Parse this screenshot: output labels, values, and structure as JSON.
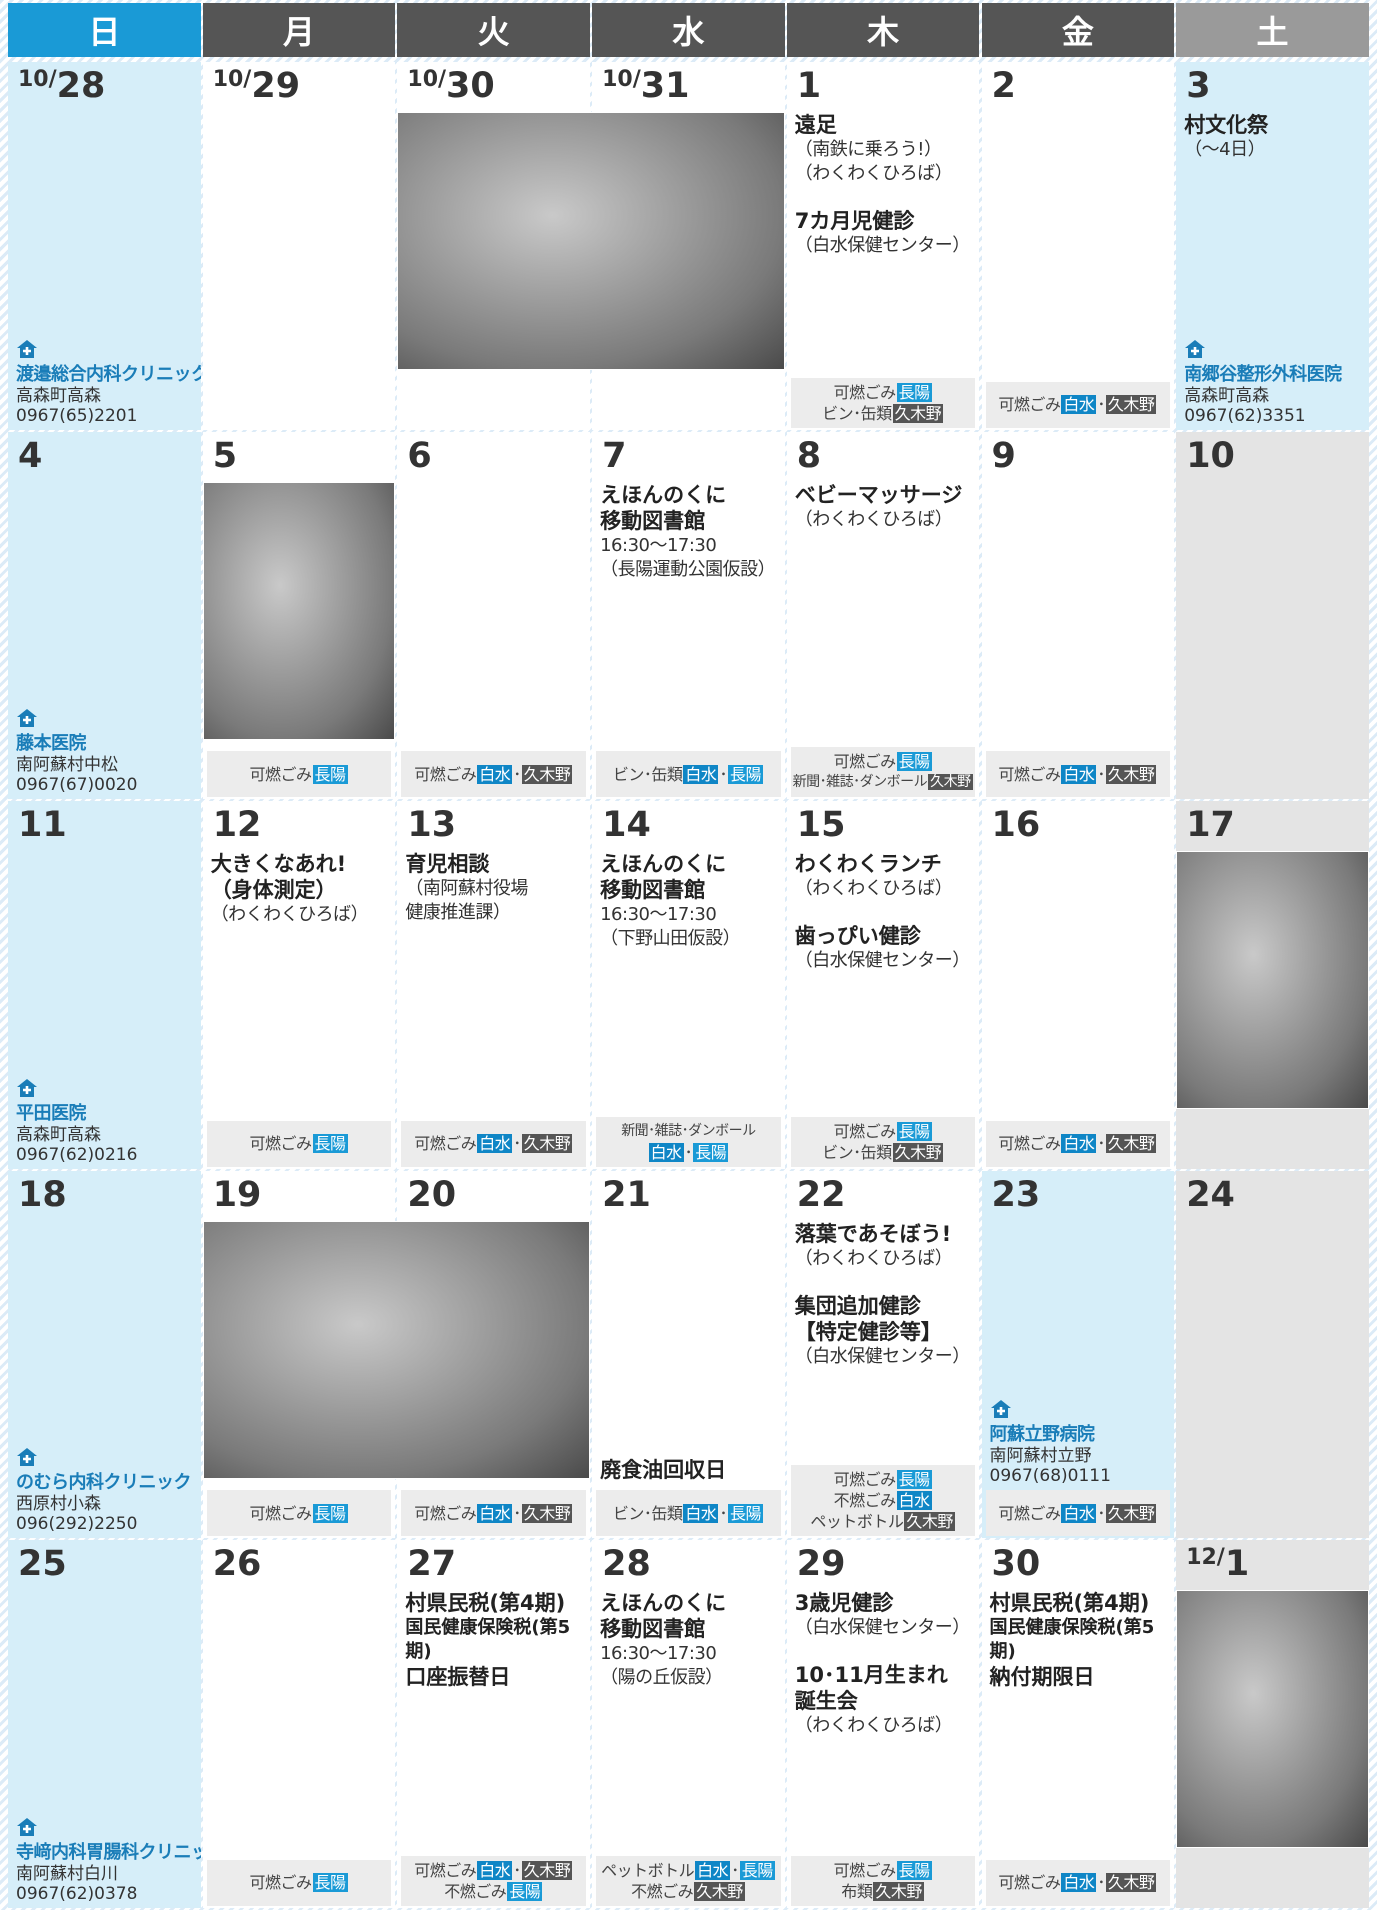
{
  "header": {
    "weekdays": [
      {
        "label": "日",
        "color": "#1a9ad6"
      },
      {
        "label": "月",
        "color": "#555555"
      },
      {
        "label": "火",
        "color": "#555555"
      },
      {
        "label": "水",
        "color": "#555555"
      },
      {
        "label": "木",
        "color": "#555555"
      },
      {
        "label": "金",
        "color": "#555555"
      },
      {
        "label": "土",
        "color": "#9a9a9a"
      }
    ]
  },
  "weeks": [
    {
      "days": [
        {
          "date": {
            "month": "10/",
            "day": "28"
          },
          "color": "#d6eef9",
          "clinic": {
            "name": "渡邉総合内科クリニック",
            "address": "高森町高森",
            "phone": "0967(65)2201"
          }
        },
        {
          "date": {
            "month": "10/",
            "day": "29"
          },
          "color": "#ffffff"
        },
        {
          "date": {
            "month": "10/",
            "day": "30"
          },
          "color": "#ffffff"
        },
        {
          "date": {
            "month": "10/",
            "day": "31"
          },
          "color": "#ffffff"
        },
        {
          "date": {
            "day": "1"
          },
          "color": "#ffffff",
          "events": [
            {
              "title": [
                "遠足"
              ],
              "notes": [
                "（南鉄に乗ろう!）",
                "（わくわくひろば）"
              ]
            },
            {
              "title": [
                "7カ月児健診"
              ],
              "notes": [
                "（白水保健センター）"
              ]
            }
          ],
          "garbage": [
            [
              {
                "text": "可燃ごみ"
              },
              {
                "text": "長陽",
                "color": "#1a9ad6"
              }
            ],
            [
              {
                "text": "ビン･缶類"
              },
              {
                "text": "久木野",
                "color": "#555555"
              }
            ]
          ]
        },
        {
          "date": {
            "day": "2"
          },
          "color": "#ffffff",
          "garbage": [
            [
              {
                "text": "可燃ごみ"
              },
              {
                "text": "白水",
                "color": "#0f86c6"
              },
              {
                "text": "･"
              },
              {
                "text": "久木野",
                "color": "#555555"
              }
            ]
          ]
        },
        {
          "date": {
            "day": "3"
          },
          "color": "#d6eef9",
          "events": [
            {
              "title": [
                "村文化祭"
              ],
              "notes": [
                "（～4日）"
              ]
            }
          ],
          "clinic": {
            "name": "南郷谷整形外科医院",
            "address": "高森町高森",
            "phone": "0967(62)3351"
          }
        }
      ]
    },
    {
      "days": [
        {
          "date": {
            "day": "4"
          },
          "color": "#d6eef9",
          "clinic": {
            "name": "藤本医院",
            "address": "南阿蘇村中松",
            "phone": "0967(67)0020"
          }
        },
        {
          "date": {
            "day": "5"
          },
          "color": "#ffffff",
          "garbage": [
            [
              {
                "text": "可燃ごみ"
              },
              {
                "text": "長陽",
                "color": "#1a9ad6"
              }
            ]
          ]
        },
        {
          "date": {
            "day": "6"
          },
          "color": "#ffffff",
          "garbage": [
            [
              {
                "text": "可燃ごみ"
              },
              {
                "text": "白水",
                "color": "#0f86c6"
              },
              {
                "text": "･"
              },
              {
                "text": "久木野",
                "color": "#555555"
              }
            ]
          ]
        },
        {
          "date": {
            "day": "7"
          },
          "color": "#ffffff",
          "events": [
            {
              "title": [
                "えほんのくに",
                "移動図書館"
              ],
              "notes": [
                "16:30～17:30",
                "（長陽運動公園仮設）"
              ]
            }
          ],
          "garbage": [
            [
              {
                "text": "ビン･缶類"
              },
              {
                "text": "白水",
                "color": "#0f86c6"
              },
              {
                "text": "･"
              },
              {
                "text": "長陽",
                "color": "#1a9ad6"
              }
            ]
          ]
        },
        {
          "date": {
            "day": "8"
          },
          "color": "#ffffff",
          "events": [
            {
              "title": [
                "ベビーマッサージ"
              ],
              "notes": [
                "（わくわくひろば）"
              ]
            }
          ],
          "garbage": [
            [
              {
                "text": "可燃ごみ"
              },
              {
                "text": "長陽",
                "color": "#1a9ad6"
              }
            ],
            [
              {
                "text": "新聞･雑誌･ダンボール"
              },
              {
                "text": "久木野",
                "color": "#555555"
              }
            ]
          ]
        },
        {
          "date": {
            "day": "9"
          },
          "color": "#ffffff",
          "garbage": [
            [
              {
                "text": "可燃ごみ"
              },
              {
                "text": "白水",
                "color": "#0f86c6"
              },
              {
                "text": "･"
              },
              {
                "text": "久木野",
                "color": "#555555"
              }
            ]
          ]
        },
        {
          "date": {
            "day": "10"
          },
          "color": "#e4e4e4"
        }
      ]
    },
    {
      "days": [
        {
          "date": {
            "day": "11"
          },
          "color": "#d6eef9",
          "clinic": {
            "name": "平田医院",
            "address": "高森町高森",
            "phone": "0967(62)0216"
          }
        },
        {
          "date": {
            "day": "12"
          },
          "color": "#ffffff",
          "events": [
            {
              "title": [
                "大きくなあれ!",
                "（身体測定）"
              ],
              "notes": [
                "（わくわくひろば）"
              ]
            }
          ],
          "garbage": [
            [
              {
                "text": "可燃ごみ"
              },
              {
                "text": "長陽",
                "color": "#1a9ad6"
              }
            ]
          ]
        },
        {
          "date": {
            "day": "13"
          },
          "color": "#ffffff",
          "events": [
            {
              "title": [
                "育児相談"
              ],
              "notes": [
                "（南阿蘇村役場",
                "健康推進課）"
              ]
            }
          ],
          "garbage": [
            [
              {
                "text": "可燃ごみ"
              },
              {
                "text": "白水",
                "color": "#0f86c6"
              },
              {
                "text": "･"
              },
              {
                "text": "久木野",
                "color": "#555555"
              }
            ]
          ]
        },
        {
          "date": {
            "day": "14"
          },
          "color": "#ffffff",
          "events": [
            {
              "title": [
                "えほんのくに",
                "移動図書館"
              ],
              "notes": [
                "16:30～17:30",
                "（下野山田仮設）"
              ]
            }
          ],
          "garbage": [
            [
              {
                "text": "新聞･雑誌･ダンボール"
              }
            ],
            [
              {
                "text": "白水",
                "color": "#0f86c6"
              },
              {
                "text": "･"
              },
              {
                "text": "長陽",
                "color": "#1a9ad6"
              }
            ]
          ]
        },
        {
          "date": {
            "day": "15"
          },
          "color": "#ffffff",
          "events": [
            {
              "title": [
                "わくわくランチ"
              ],
              "notes": [
                "（わくわくひろば）"
              ]
            },
            {
              "title": [
                "歯っぴい健診"
              ],
              "notes": [
                "（白水保健センター）"
              ]
            }
          ],
          "garbage": [
            [
              {
                "text": "可燃ごみ"
              },
              {
                "text": "長陽",
                "color": "#1a9ad6"
              }
            ],
            [
              {
                "text": "ビン･缶類"
              },
              {
                "text": "久木野",
                "color": "#555555"
              }
            ]
          ]
        },
        {
          "date": {
            "day": "16"
          },
          "color": "#ffffff",
          "garbage": [
            [
              {
                "text": "可燃ごみ"
              },
              {
                "text": "白水",
                "color": "#0f86c6"
              },
              {
                "text": "･"
              },
              {
                "text": "久木野",
                "color": "#555555"
              }
            ]
          ]
        },
        {
          "date": {
            "day": "17"
          },
          "color": "#e4e4e4"
        }
      ]
    },
    {
      "days": [
        {
          "date": {
            "day": "18"
          },
          "color": "#d6eef9",
          "clinic": {
            "name": "のむら内科クリニック",
            "address": "西原村小森",
            "phone": "096(292)2250"
          }
        },
        {
          "date": {
            "day": "19"
          },
          "color": "#ffffff",
          "garbage": [
            [
              {
                "text": "可燃ごみ"
              },
              {
                "text": "長陽",
                "color": "#1a9ad6"
              }
            ]
          ]
        },
        {
          "date": {
            "day": "20"
          },
          "color": "#ffffff",
          "garbage": [
            [
              {
                "text": "可燃ごみ"
              },
              {
                "text": "白水",
                "color": "#0f86c6"
              },
              {
                "text": "･"
              },
              {
                "text": "久木野",
                "color": "#555555"
              }
            ]
          ]
        },
        {
          "date": {
            "day": "21"
          },
          "color": "#ffffff",
          "footnote": "廃食油回収日",
          "garbage": [
            [
              {
                "text": "ビン･缶類"
              },
              {
                "text": "白水",
                "color": "#0f86c6"
              },
              {
                "text": "･"
              },
              {
                "text": "長陽",
                "color": "#1a9ad6"
              }
            ]
          ]
        },
        {
          "date": {
            "day": "22"
          },
          "color": "#ffffff",
          "events": [
            {
              "title": [
                "落葉であそぼう!"
              ],
              "notes": [
                "（わくわくひろば）"
              ]
            },
            {
              "title": [
                "集団追加健診",
                "【特定健診等】"
              ],
              "notes": [
                "（白水保健センター）"
              ]
            }
          ],
          "garbage": [
            [
              {
                "text": "可燃ごみ"
              },
              {
                "text": "長陽",
                "color": "#1a9ad6"
              }
            ],
            [
              {
                "text": "不燃ごみ"
              },
              {
                "text": "白水",
                "color": "#0f86c6"
              }
            ],
            [
              {
                "text": "ペットボトル"
              },
              {
                "text": "久木野",
                "color": "#555555"
              }
            ]
          ]
        },
        {
          "date": {
            "day": "23"
          },
          "color": "#d6eef9",
          "clinic": {
            "name": "阿蘇立野病院",
            "address": "南阿蘇村立野",
            "phone": "0967(68)0111"
          },
          "garbage": [
            [
              {
                "text": "可燃ごみ"
              },
              {
                "text": "白水",
                "color": "#0f86c6"
              },
              {
                "text": "･"
              },
              {
                "text": "久木野",
                "color": "#555555"
              }
            ]
          ]
        },
        {
          "date": {
            "day": "24"
          },
          "color": "#e4e4e4"
        }
      ]
    },
    {
      "days": [
        {
          "date": {
            "day": "25"
          },
          "color": "#d6eef9",
          "clinic": {
            "name": "寺﨑内科胃腸科クリニック",
            "address": "南阿蘇村白川",
            "phone": "0967(62)0378"
          }
        },
        {
          "date": {
            "day": "26"
          },
          "color": "#ffffff",
          "garbage": [
            [
              {
                "text": "可燃ごみ"
              },
              {
                "text": "長陽",
                "color": "#1a9ad6"
              }
            ]
          ]
        },
        {
          "date": {
            "day": "27"
          },
          "color": "#ffffff",
          "events": [
            {
              "title": [
                "村県民税(第4期)",
                "国民健康保険税(第5期)",
                "口座振替日"
              ]
            }
          ],
          "garbage": [
            [
              {
                "text": "可燃ごみ"
              },
              {
                "text": "白水",
                "color": "#0f86c6"
              },
              {
                "text": "･"
              },
              {
                "text": "久木野",
                "color": "#555555"
              }
            ],
            [
              {
                "text": "不燃ごみ"
              },
              {
                "text": "長陽",
                "color": "#1a9ad6"
              }
            ]
          ]
        },
        {
          "date": {
            "day": "28"
          },
          "color": "#ffffff",
          "events": [
            {
              "title": [
                "えほんのくに",
                "移動図書館"
              ],
              "notes": [
                "16:30～17:30",
                "（陽の丘仮設）"
              ]
            }
          ],
          "garbage": [
            [
              {
                "text": "ペットボトル"
              },
              {
                "text": "白水",
                "color": "#0f86c6"
              },
              {
                "text": "･"
              },
              {
                "text": "長陽",
                "color": "#1a9ad6"
              }
            ],
            [
              {
                "text": "不燃ごみ"
              },
              {
                "text": "久木野",
                "color": "#555555"
              }
            ]
          ]
        },
        {
          "date": {
            "day": "29"
          },
          "color": "#ffffff",
          "events": [
            {
              "title": [
                "3歳児健診"
              ],
              "notes": [
                "（白水保健センター）"
              ]
            },
            {
              "title": [
                "10･11月生まれ",
                "誕生会"
              ],
              "notes": [
                "（わくわくひろば）"
              ]
            }
          ],
          "garbage": [
            [
              {
                "text": "可燃ごみ"
              },
              {
                "text": "長陽",
                "color": "#1a9ad6"
              }
            ],
            [
              {
                "text": "布類"
              },
              {
                "text": "久木野",
                "color": "#555555"
              }
            ]
          ]
        },
        {
          "date": {
            "day": "30"
          },
          "color": "#ffffff",
          "events": [
            {
              "title": [
                "村県民税(第4期)",
                "国民健康保険税(第5期)",
                "納付期限日"
              ]
            }
          ],
          "garbage": [
            [
              {
                "text": "可燃ごみ"
              },
              {
                "text": "白水",
                "color": "#0f86c6"
              },
              {
                "text": "･"
              },
              {
                "text": "久木野",
                "color": "#555555"
              }
            ]
          ]
        },
        {
          "date": {
            "month": "12/",
            "day": "1"
          },
          "color": "#e4e4e4"
        }
      ]
    }
  ]
}
